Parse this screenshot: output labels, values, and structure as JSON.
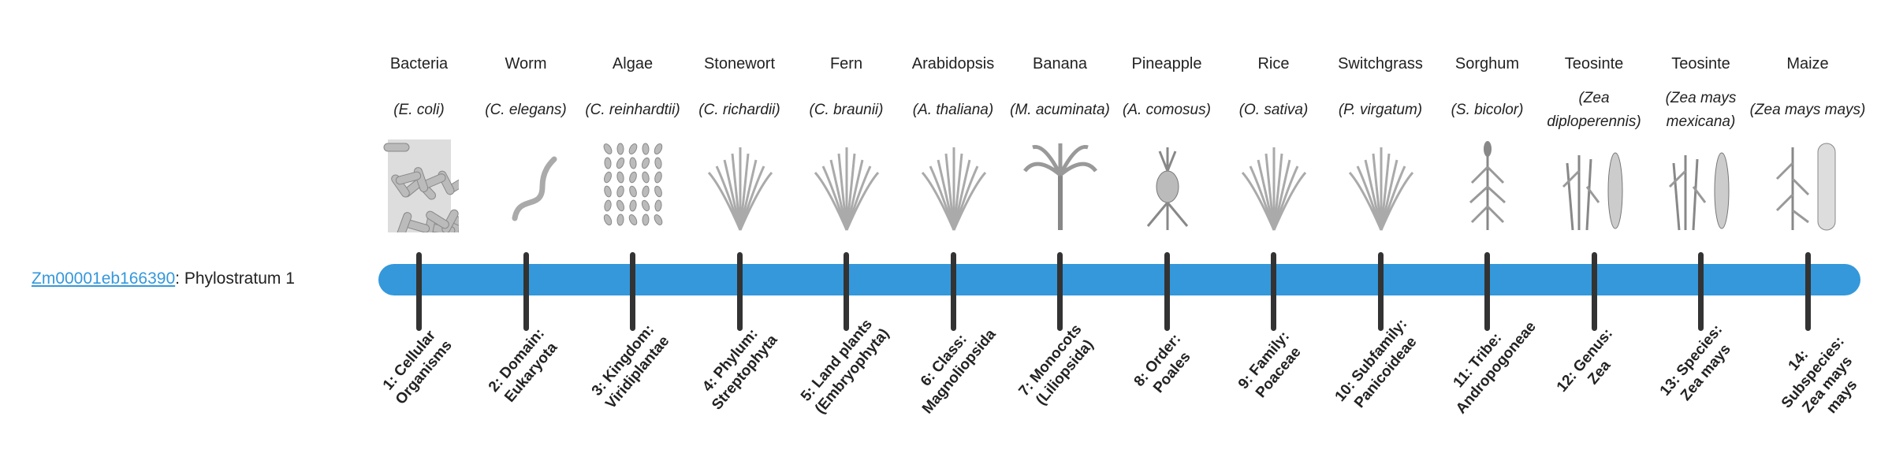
{
  "gene": {
    "id": "Zm00001eb166390",
    "suffix": ": Phylostratum 1"
  },
  "colors": {
    "bar": "#3498db",
    "tick": "#333333",
    "link": "#3498db"
  },
  "strata": [
    {
      "common": "Bacteria",
      "species": "(E. coli)",
      "label": "1: Cellular Organisms",
      "icon": "bacteria-icon"
    },
    {
      "common": "Worm",
      "species": "(C. elegans)",
      "label": "2: Domain: Eukaryota",
      "icon": "worm-icon"
    },
    {
      "common": "Algae",
      "species": "(C. reinhardtii)",
      "label": "3: Kingdom: Viridiplantae",
      "icon": "algae-icon"
    },
    {
      "common": "Stonewort",
      "species": "(C. richardii)",
      "label": "4: Phylum: Streptophyta",
      "icon": "stonewort-icon"
    },
    {
      "common": "Fern",
      "species": "(C. braunii)",
      "label": "5: Land plants (Embryophyta)",
      "icon": "fern-icon"
    },
    {
      "common": "Arabidopsis",
      "species": "(A. thaliana)",
      "label": "6: Class: Magnoliopsida",
      "icon": "arabidopsis-icon"
    },
    {
      "common": "Banana",
      "species": "(M. acuminata)",
      "label": "7: Monocots (Liliopsida)",
      "icon": "banana-icon"
    },
    {
      "common": "Pineapple",
      "species": "(A. comosus)",
      "label": "8: Order: Poales",
      "icon": "pineapple-icon"
    },
    {
      "common": "Rice",
      "species": "(O. sativa)",
      "label": "9: Family: Poaceae",
      "icon": "rice-icon"
    },
    {
      "common": "Switchgrass",
      "species": "(P. virgatum)",
      "label": "10: Subfamily: Panicoideae",
      "icon": "switchgrass-icon"
    },
    {
      "common": "Sorghum",
      "species": "(S. bicolor)",
      "label": "11: Tribe: Andropogoneae",
      "icon": "sorghum-icon"
    },
    {
      "common": "Teosinte",
      "species": "(Zea diploperennis)",
      "label": "12: Genus: Zea",
      "icon": "teosinte-icon"
    },
    {
      "common": "Teosinte",
      "species": "(Zea mays mexicana)",
      "label": "13: Species: Zea mays",
      "icon": "teosinte-icon"
    },
    {
      "common": "Maize",
      "species": "(Zea mays mays)",
      "label": "14: Subspecies: Zea mays mays",
      "icon": "maize-icon"
    }
  ]
}
